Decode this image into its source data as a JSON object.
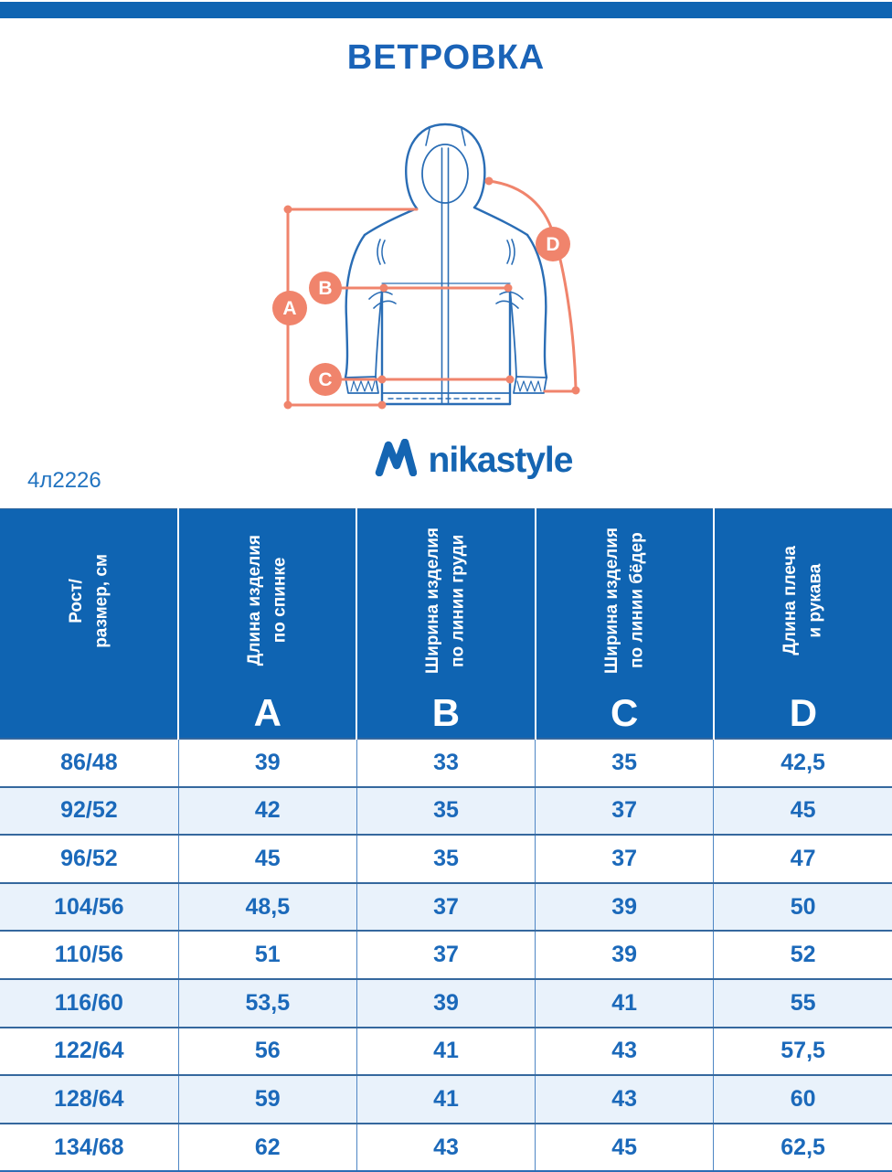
{
  "page": {
    "title": "ВЕТРОВКА",
    "product_code": "4л2226",
    "brand": "nikastyle"
  },
  "colors": {
    "primary_blue": "#0F64B2",
    "title_blue": "#1A63B7",
    "cell_text_blue": "#1B69BA",
    "row_stripe": "#E9F2FB",
    "accent_orange": "#F0846C",
    "jacket_line_blue": "#2A6DB5"
  },
  "diagram": {
    "jacket_icon": "hooded-windbreaker-back-view",
    "a": "A",
    "b": "B",
    "c": "C",
    "d": "D"
  },
  "table": {
    "columns": [
      {
        "id": "size",
        "label": "Рост/\nразмер, см",
        "letter": ""
      },
      {
        "id": "a",
        "label": "Длина изделия\nпо спинке",
        "letter": "A"
      },
      {
        "id": "b",
        "label": "Ширина изделия\nпо линии груди",
        "letter": "B"
      },
      {
        "id": "c",
        "label": "Ширина изделия\nпо линии бёдер",
        "letter": "C"
      },
      {
        "id": "d",
        "label": "Длина плеча\nи рукава",
        "letter": "D"
      }
    ],
    "rows": [
      [
        "86/48",
        "39",
        "33",
        "35",
        "42,5"
      ],
      [
        "92/52",
        "42",
        "35",
        "37",
        "45"
      ],
      [
        "96/52",
        "45",
        "35",
        "37",
        "47"
      ],
      [
        "104/56",
        "48,5",
        "37",
        "39",
        "50"
      ],
      [
        "110/56",
        "51",
        "37",
        "39",
        "52"
      ],
      [
        "116/60",
        "53,5",
        "39",
        "41",
        "55"
      ],
      [
        "122/64",
        "56",
        "41",
        "43",
        "57,5"
      ],
      [
        "128/64",
        "59",
        "41",
        "43",
        "60"
      ],
      [
        "134/68",
        "62",
        "43",
        "45",
        "62,5"
      ]
    ]
  }
}
